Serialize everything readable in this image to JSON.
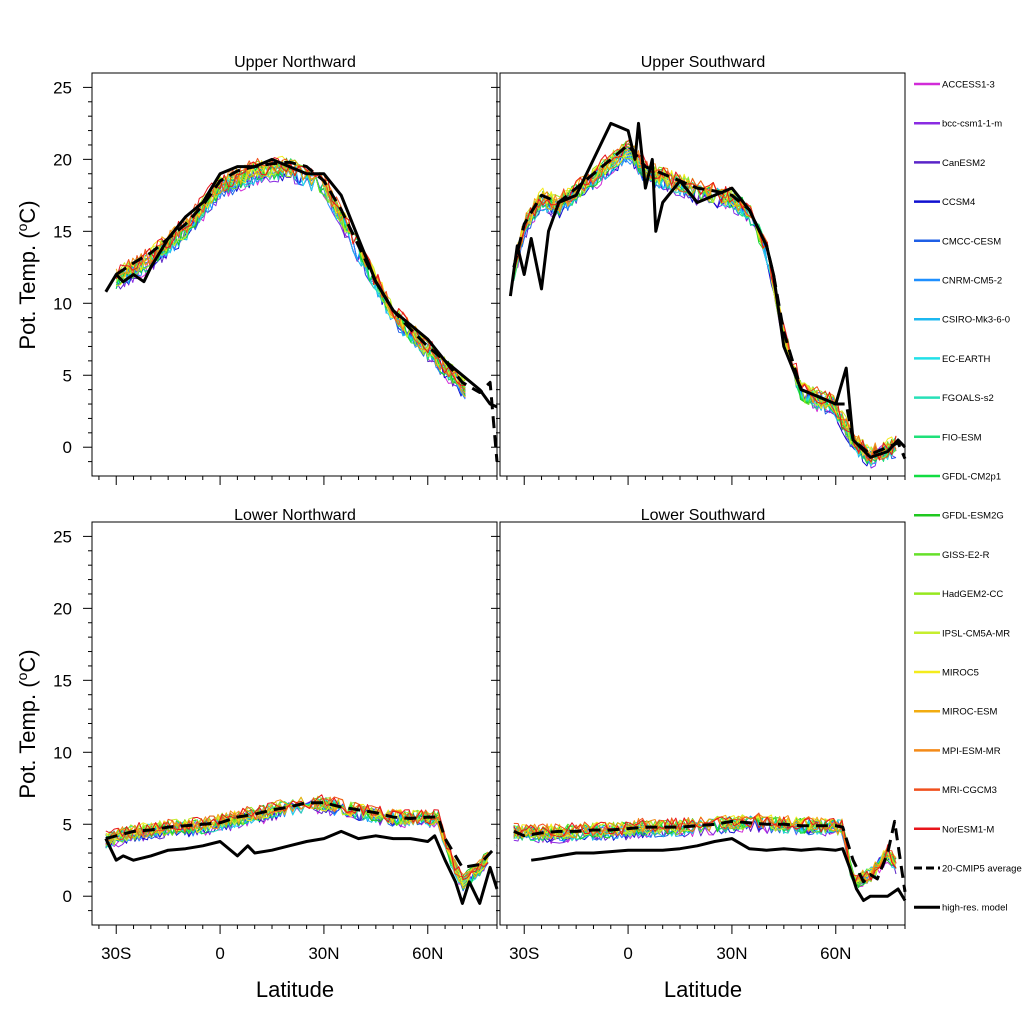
{
  "figure": {
    "ylabel": "Pot. Temp. (°C)",
    "ylabel_main": "Pot. Temp. (",
    "ylabel_sup": "o",
    "ylabel_unit": "C)",
    "xlabel": "Latitude"
  },
  "colors": {
    "ACCESS1-3": "#d12bd8",
    "bcc-csm1-1-m": "#8a2be2",
    "CanESM2": "#5a24c8",
    "CCSM4": "#1010d0",
    "CMCC-CESM": "#1f5fe6",
    "CNRM-CM5-2": "#1e8fff",
    "CSIRO-Mk3-6-0": "#1cb8f0",
    "EC-EARTH": "#22e0e8",
    "FGOALS-s2": "#28e0b8",
    "FIO-ESM": "#1fe07a",
    "GFDL-CM2p1": "#12dc42",
    "GFDL-ESM2G": "#20c820",
    "GISS-E2-R": "#66e02a",
    "HadGEM2-CC": "#96e81e",
    "IPSL-CM5A-MR": "#c6ee2e",
    "MIROC5": "#f4ec1c",
    "MIROC-ESM": "#f2ac10",
    "MPI-ESM-MR": "#f48a18",
    "MRI-CGCM3": "#f0501e",
    "NorESM1-M": "#e8141a"
  },
  "chart_data": [
    {
      "type": "line",
      "title": "Upper Northward",
      "xlim": [
        -37,
        80
      ],
      "ylim": [
        -2,
        26
      ],
      "x_ticks": [
        -30,
        0,
        30,
        60
      ],
      "x_tick_labels": [
        "30S",
        "0",
        "30N",
        "60N"
      ],
      "y_ticks": [
        0,
        5,
        10,
        15,
        20,
        25
      ],
      "y_tick_labels": [
        "0",
        "5",
        "10",
        "15",
        "20",
        "25"
      ],
      "ensemble_range": [
        -30,
        72
      ],
      "anchor_x": [
        -30,
        -20,
        -10,
        0,
        10,
        20,
        30,
        40,
        50,
        60,
        70,
        72
      ],
      "anchor_y": [
        12.0,
        13.5,
        15.5,
        18.5,
        19.5,
        19.8,
        18.5,
        14.0,
        9.5,
        7.0,
        4.5,
        3.8
      ],
      "series": [
        {
          "name": "20-CMIP5 average",
          "x": [
            -30,
            -25,
            -20,
            -15,
            -10,
            -5,
            0,
            5,
            10,
            15,
            20,
            25,
            30,
            35,
            40,
            45,
            50,
            55,
            60,
            65,
            70,
            75,
            78,
            80
          ],
          "y": [
            12.0,
            12.8,
            13.5,
            14.5,
            15.5,
            16.8,
            18.5,
            19.2,
            19.5,
            19.7,
            19.8,
            19.5,
            18.5,
            16.5,
            14.0,
            11.5,
            9.5,
            8.2,
            7.0,
            6.0,
            4.5,
            3.8,
            4.5,
            -1.0
          ]
        },
        {
          "name": "high-res. model",
          "x": [
            -33,
            -30,
            -28,
            -25,
            -22,
            -20,
            -15,
            -10,
            -5,
            0,
            5,
            10,
            15,
            20,
            25,
            30,
            35,
            40,
            45,
            50,
            55,
            60,
            65,
            70,
            75,
            78,
            80
          ],
          "y": [
            10.8,
            12.0,
            11.5,
            12.0,
            11.5,
            12.5,
            14.5,
            16.0,
            17.0,
            19.0,
            19.5,
            19.5,
            20.0,
            19.5,
            19.0,
            19.0,
            17.5,
            14.5,
            11.5,
            9.5,
            8.5,
            7.5,
            6.0,
            5.0,
            4.0,
            3.0,
            2.8
          ]
        }
      ]
    },
    {
      "type": "line",
      "title": "Upper Southward",
      "xlim": [
        -37,
        80
      ],
      "ylim": [
        -2,
        26
      ],
      "x_ticks": [
        -30,
        0,
        30,
        60
      ],
      "x_tick_labels": [
        "30S",
        "0",
        "30N",
        "60N"
      ],
      "y_ticks": [
        0,
        5,
        10,
        15,
        20,
        25
      ],
      "y_tick_labels": [
        "0",
        "5",
        "10",
        "15",
        "20",
        "25"
      ],
      "ensemble_range": [
        -33,
        78
      ],
      "anchor_x": [
        -33,
        -30,
        -25,
        -20,
        -15,
        -10,
        -5,
        0,
        5,
        10,
        15,
        20,
        25,
        30,
        35,
        40,
        45,
        50,
        55,
        60,
        65,
        70,
        75,
        78
      ],
      "anchor_y": [
        12.5,
        15.5,
        17.5,
        17.0,
        18.0,
        19.0,
        20.0,
        21.0,
        19.5,
        19.0,
        18.5,
        18.0,
        17.8,
        17.5,
        16.5,
        14.0,
        8.0,
        4.0,
        3.5,
        3.0,
        0.5,
        -0.5,
        0.0,
        0.3
      ],
      "series": [
        {
          "name": "20-CMIP5 average",
          "x": [
            -33,
            -30,
            -25,
            -20,
            -15,
            -10,
            -5,
            0,
            5,
            10,
            15,
            20,
            25,
            30,
            35,
            40,
            42,
            45,
            50,
            55,
            60,
            63,
            65,
            70,
            75,
            78,
            80
          ],
          "y": [
            12.5,
            15.5,
            17.5,
            17.0,
            18.0,
            19.0,
            20.0,
            21.0,
            19.5,
            19.0,
            18.5,
            18.0,
            17.8,
            17.5,
            16.5,
            14.0,
            12.0,
            8.0,
            4.0,
            3.5,
            3.0,
            3.0,
            0.5,
            -0.5,
            0.0,
            0.3,
            -0.8
          ]
        },
        {
          "name": "high-res. model",
          "x": [
            -34,
            -32,
            -30,
            -28,
            -25,
            -23,
            -20,
            -15,
            -10,
            -5,
            0,
            2,
            3,
            5,
            7,
            8,
            10,
            15,
            20,
            25,
            30,
            35,
            40,
            42,
            45,
            50,
            55,
            60,
            63,
            65,
            70,
            75,
            78,
            80
          ],
          "y": [
            10.5,
            14.0,
            12.0,
            14.5,
            11.0,
            15.0,
            17.0,
            17.5,
            20.0,
            22.5,
            22.0,
            20.0,
            22.5,
            18.0,
            20.0,
            15.0,
            17.0,
            18.5,
            17.0,
            17.5,
            18.0,
            16.5,
            14.0,
            12.0,
            7.0,
            4.0,
            3.5,
            3.0,
            5.5,
            0.5,
            -0.7,
            -0.3,
            0.5,
            0.0
          ]
        }
      ]
    },
    {
      "type": "line",
      "title": "Lower Northward",
      "xlim": [
        -37,
        80
      ],
      "ylim": [
        -2,
        26
      ],
      "x_ticks": [
        -30,
        0,
        30,
        60
      ],
      "x_tick_labels": [
        "30S",
        "0",
        "30N",
        "60N"
      ],
      "y_ticks": [
        0,
        5,
        10,
        15,
        20,
        25
      ],
      "y_tick_labels": [
        "0",
        "5",
        "10",
        "15",
        "20",
        "25"
      ],
      "ensemble_range": [
        -33,
        78
      ],
      "anchor_x": [
        -33,
        -25,
        -15,
        -5,
        5,
        15,
        25,
        30,
        35,
        40,
        50,
        60,
        63,
        66,
        70,
        75,
        78
      ],
      "anchor_y": [
        4.0,
        4.5,
        4.8,
        5.0,
        5.5,
        6.0,
        6.5,
        6.5,
        6.2,
        6.0,
        5.5,
        5.5,
        5.5,
        3.0,
        1.0,
        2.0,
        3.0
      ],
      "series": [
        {
          "name": "20-CMIP5 average",
          "x": [
            -33,
            -25,
            -20,
            -15,
            -10,
            -5,
            0,
            5,
            10,
            15,
            20,
            25,
            30,
            35,
            40,
            45,
            50,
            55,
            60,
            63,
            65,
            70,
            75,
            78,
            80
          ],
          "y": [
            4.0,
            4.5,
            4.6,
            4.8,
            4.9,
            5.0,
            5.1,
            5.5,
            5.7,
            6.0,
            6.2,
            6.5,
            6.5,
            6.2,
            6.0,
            5.8,
            5.5,
            5.4,
            5.5,
            5.5,
            4.0,
            2.0,
            2.2,
            3.0,
            3.5
          ]
        },
        {
          "name": "high-res. model",
          "x": [
            -33,
            -30,
            -28,
            -25,
            -20,
            -15,
            -10,
            -5,
            0,
            5,
            8,
            10,
            15,
            20,
            25,
            30,
            35,
            40,
            45,
            50,
            55,
            60,
            62,
            65,
            68,
            70,
            72,
            75,
            78,
            80
          ],
          "y": [
            4.0,
            2.5,
            2.8,
            2.5,
            2.8,
            3.2,
            3.3,
            3.5,
            3.8,
            2.8,
            3.5,
            3.0,
            3.2,
            3.5,
            3.8,
            4.0,
            4.5,
            4.0,
            4.2,
            4.0,
            4.0,
            3.8,
            4.2,
            2.5,
            1.0,
            -0.5,
            1.0,
            -0.5,
            2.0,
            0.5
          ]
        }
      ]
    },
    {
      "type": "line",
      "title": "Lower Southward",
      "xlim": [
        -37,
        80
      ],
      "ylim": [
        -2,
        26
      ],
      "x_ticks": [
        -30,
        0,
        30,
        60
      ],
      "x_tick_labels": [
        "30S",
        "0",
        "30N",
        "60N"
      ],
      "y_ticks": [
        0,
        5,
        10,
        15,
        20,
        25
      ],
      "y_tick_labels": [
        "0",
        "5",
        "10",
        "15",
        "20",
        "25"
      ],
      "ensemble_range": [
        -33,
        78
      ],
      "anchor_x": [
        -33,
        -25,
        -15,
        -5,
        5,
        15,
        25,
        35,
        45,
        55,
        62,
        65,
        70,
        75,
        78
      ],
      "anchor_y": [
        4.5,
        4.4,
        4.5,
        4.6,
        4.8,
        4.8,
        5.0,
        5.2,
        5.0,
        4.9,
        4.8,
        1.0,
        1.5,
        3.0,
        2.0
      ],
      "series": [
        {
          "name": "20-CMIP5 average",
          "x": [
            -33,
            -30,
            -25,
            -20,
            -15,
            -10,
            -5,
            0,
            5,
            10,
            15,
            20,
            25,
            30,
            35,
            40,
            45,
            50,
            55,
            60,
            62,
            65,
            68,
            70,
            72,
            75,
            77,
            80
          ],
          "y": [
            4.5,
            4.2,
            4.4,
            4.5,
            4.5,
            4.6,
            4.6,
            4.7,
            4.8,
            4.8,
            4.8,
            4.9,
            5.0,
            5.2,
            5.1,
            5.0,
            5.0,
            4.9,
            4.9,
            4.9,
            4.8,
            2.5,
            1.0,
            1.5,
            1.2,
            3.0,
            5.2,
            0.3
          ]
        },
        {
          "name": "high-res. model",
          "x": [
            -28,
            -25,
            -20,
            -15,
            -10,
            -5,
            0,
            5,
            10,
            15,
            20,
            25,
            30,
            35,
            40,
            45,
            50,
            55,
            60,
            62,
            64,
            66,
            68,
            70,
            75,
            78,
            80
          ],
          "y": [
            2.5,
            2.6,
            2.8,
            3.0,
            3.0,
            3.1,
            3.2,
            3.2,
            3.2,
            3.3,
            3.5,
            3.8,
            4.0,
            3.3,
            3.2,
            3.3,
            3.2,
            3.3,
            3.2,
            3.3,
            2.0,
            0.5,
            -0.3,
            0.0,
            0.0,
            0.5,
            -0.3
          ]
        }
      ]
    }
  ],
  "legend": {
    "placement": "right",
    "items": [
      {
        "label": "ACCESS1-3",
        "style": "solid",
        "color": "#d12bd8"
      },
      {
        "label": "bcc-csm1-1-m",
        "style": "solid",
        "color": "#8a2be2"
      },
      {
        "label": "CanESM2",
        "style": "solid",
        "color": "#5a24c8"
      },
      {
        "label": "CCSM4",
        "style": "solid",
        "color": "#1010d0"
      },
      {
        "label": "CMCC-CESM",
        "style": "solid",
        "color": "#1f5fe6"
      },
      {
        "label": "CNRM-CM5-2",
        "style": "solid",
        "color": "#1e8fff"
      },
      {
        "label": "CSIRO-Mk3-6-0",
        "style": "solid",
        "color": "#1cb8f0"
      },
      {
        "label": "EC-EARTH",
        "style": "solid",
        "color": "#22e0e8"
      },
      {
        "label": "FGOALS-s2",
        "style": "solid",
        "color": "#28e0b8"
      },
      {
        "label": "FIO-ESM",
        "style": "solid",
        "color": "#1fe07a"
      },
      {
        "label": "GFDL-CM2p1",
        "style": "solid",
        "color": "#12dc42"
      },
      {
        "label": "GFDL-ESM2G",
        "style": "solid",
        "color": "#20c820"
      },
      {
        "label": "GISS-E2-R",
        "style": "solid",
        "color": "#66e02a"
      },
      {
        "label": "HadGEM2-CC",
        "style": "solid",
        "color": "#96e81e"
      },
      {
        "label": "IPSL-CM5A-MR",
        "style": "solid",
        "color": "#c6ee2e"
      },
      {
        "label": "MIROC5",
        "style": "solid",
        "color": "#f4ec1c"
      },
      {
        "label": "MIROC-ESM",
        "style": "solid",
        "color": "#f2ac10"
      },
      {
        "label": "MPI-ESM-MR",
        "style": "solid",
        "color": "#f48a18"
      },
      {
        "label": "MRI-CGCM3",
        "style": "solid",
        "color": "#f0501e"
      },
      {
        "label": "NorESM1-M",
        "style": "solid",
        "color": "#e8141a"
      },
      {
        "label": "20-CMIP5 average",
        "style": "dashed",
        "color": "#000000"
      },
      {
        "label": "high-res. model",
        "style": "solid-thick",
        "color": "#000000"
      }
    ]
  }
}
